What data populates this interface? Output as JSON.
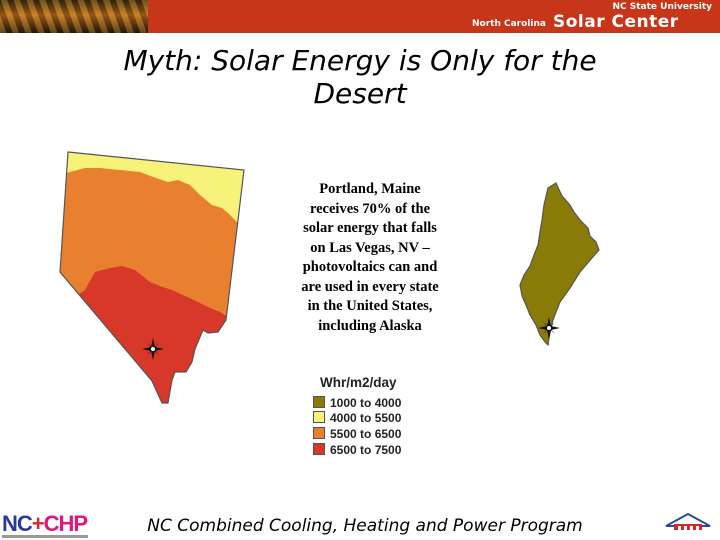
{
  "header": {
    "university": "NC State University",
    "center_prefix": "North Carolina",
    "center_name": "Solar Center"
  },
  "slide": {
    "title_line1": "Myth: Solar Energy is Only for the",
    "title_line2": "Desert",
    "caption_lines": [
      "Portland, Maine",
      "receives 70% of the",
      "solar energy that falls",
      "on Las Vegas, NV –",
      "photovoltaics can and",
      "are used in every state",
      "in the United States,",
      "including Alaska"
    ]
  },
  "legend": {
    "title": "Whr/m2/day",
    "items": [
      {
        "label": "1000 to 4000",
        "color": "#8a7a08"
      },
      {
        "label": "4000 to 5500",
        "color": "#f6f27a"
      },
      {
        "label": "5500 to 6500",
        "color": "#e88030"
      },
      {
        "label": "6500 to 7500",
        "color": "#d8382a"
      }
    ]
  },
  "maps": {
    "colors": {
      "olive": "#8a7a08",
      "yellow": "#f6f27a",
      "orange": "#e88030",
      "red": "#d8382a"
    }
  },
  "footer": {
    "text": "NC Combined Cooling, Heating and Power Program",
    "logo_nc": "NC",
    "logo_plus": "+",
    "logo_chp": "CHP"
  }
}
